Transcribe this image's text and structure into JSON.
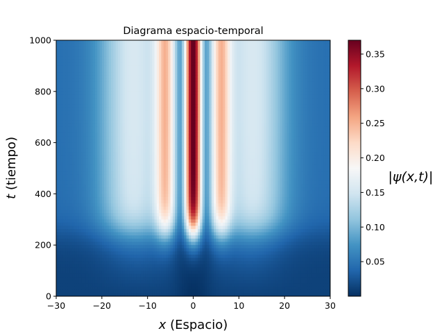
{
  "chart_data": {
    "type": "heatmap",
    "title": "Diagrama espacio-temporal",
    "xlabel_var": "x",
    "xlabel_rest": " (Espacio)",
    "ylabel_var": "t",
    "ylabel_rest": " (tiempo)",
    "colorbar_label": "|ψ(x,t)|",
    "colormap": "RdBu_r",
    "xlim": [
      -30,
      30
    ],
    "ylim": [
      0,
      1000
    ],
    "x_ticks": [
      -30,
      -20,
      -10,
      0,
      10,
      20,
      30
    ],
    "y_ticks": [
      0,
      200,
      400,
      600,
      800,
      1000
    ],
    "colorbar_range": [
      0.0,
      0.37
    ],
    "colorbar_ticks": [
      "0.05",
      "0.10",
      "0.15",
      "0.20",
      "0.25",
      "0.30",
      "0.35"
    ],
    "x_tick_labels": [
      "−30",
      "−20",
      "−10",
      "0",
      "10",
      "20",
      "30"
    ],
    "y_tick_labels": [
      "0",
      "200",
      "400",
      "600",
      "800",
      "1000"
    ],
    "features": {
      "central_peak_x": 0,
      "central_peak_max": 0.37,
      "side_peaks_x": [
        -6,
        6
      ],
      "side_peaks_max": 0.22,
      "formation_time": 250
    }
  }
}
